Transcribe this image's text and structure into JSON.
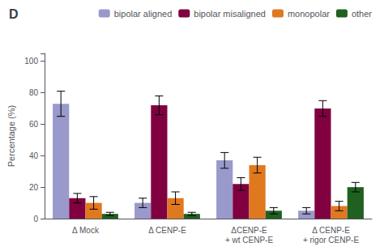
{
  "chart_data": {
    "type": "bar",
    "title": "D",
    "categories": [
      "Δ Mock",
      "Δ CENP-E",
      "ΔCENP-E\n+ wt CENP-E",
      "Δ CENP-E\n+ rigor CENP-E"
    ],
    "series": [
      {
        "name": "bipolar aligned",
        "color": "#9999cc",
        "values": [
          73,
          10,
          37,
          5
        ],
        "errors": [
          8,
          3,
          5,
          2
        ]
      },
      {
        "name": "bipolar misaligned",
        "color": "#800040",
        "values": [
          13,
          72,
          22,
          70
        ],
        "errors": [
          3,
          6,
          4,
          5
        ]
      },
      {
        "name": "monopolar",
        "color": "#e07820",
        "values": [
          10,
          13,
          34,
          8
        ],
        "errors": [
          4,
          4,
          5,
          3
        ]
      },
      {
        "name": "other",
        "color": "#206020",
        "values": [
          3,
          3,
          5,
          20
        ],
        "errors": [
          1,
          1,
          2,
          3
        ]
      }
    ],
    "ylabel": "Percentage (%)",
    "ylim": [
      0,
      105
    ],
    "yticks": [
      0,
      20,
      40,
      60,
      80,
      100
    ],
    "grid": false,
    "legend": "upper right"
  }
}
